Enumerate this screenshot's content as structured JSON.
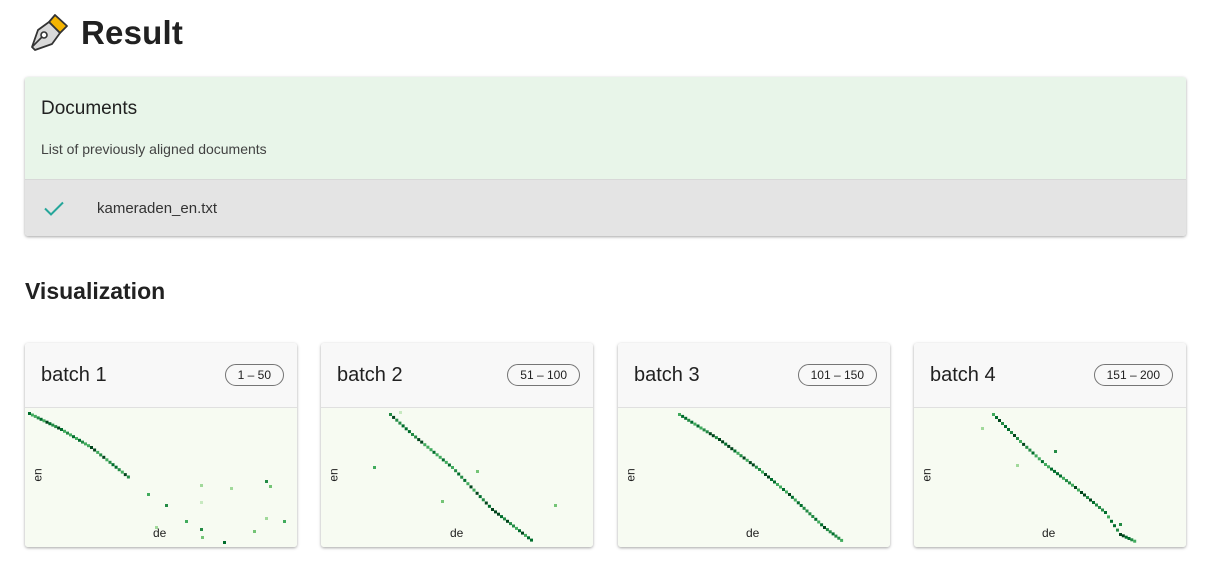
{
  "header": {
    "title": "Result",
    "icon": "pen-nib-icon"
  },
  "documents": {
    "title": "Documents",
    "subtitle": "List of previously aligned documents",
    "items": [
      {
        "name": "kameraden_en.txt",
        "status": "aligned",
        "icon": "check-icon"
      }
    ]
  },
  "visualization": {
    "heading": "Visualization",
    "x_axis_label": "de",
    "y_axis_label": "en",
    "batches": [
      {
        "title": "batch 1",
        "range": "1 – 50"
      },
      {
        "title": "batch 2",
        "range": "51 – 100"
      },
      {
        "title": "batch 3",
        "range": "101 – 150"
      },
      {
        "title": "batch 4",
        "range": "151 – 200"
      }
    ]
  },
  "colors": {
    "accent_green": "#2e7d32",
    "docs_header_bg": "#e8f5e9",
    "docs_item_bg": "#e4e4e4",
    "check_color": "#26a69a"
  }
}
